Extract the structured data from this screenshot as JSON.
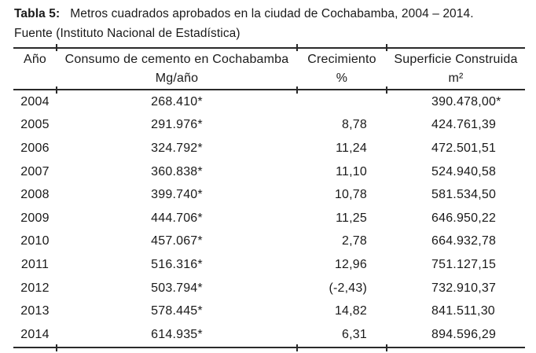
{
  "caption": {
    "label": "Tabla 5:",
    "text": "Metros cuadrados aprobados en la ciudad de Cochabamba, 2004 – 2014.",
    "source": "Fuente (Instituto Nacional de Estadística)"
  },
  "table": {
    "headers": [
      {
        "line1": "Año",
        "line2": ""
      },
      {
        "line1": "Consumo de cemento en Cochabamba",
        "line2": "Mg/año"
      },
      {
        "line1": "Crecimiento",
        "line2": "%"
      },
      {
        "line1": "Superficie Construida",
        "line2": "m²"
      }
    ],
    "rows": [
      [
        "2004",
        "268.410*",
        "",
        "390.478,00*"
      ],
      [
        "2005",
        "291.976*",
        "8,78",
        "424.761,39"
      ],
      [
        "2006",
        "324.792*",
        "11,24",
        "472.501,51"
      ],
      [
        "2007",
        "360.838*",
        "11,10",
        "524.940,58"
      ],
      [
        "2008",
        "399.740*",
        "10,78",
        "581.534,50"
      ],
      [
        "2009",
        "444.706*",
        "11,25",
        "646.950,22"
      ],
      [
        "2010",
        "457.067*",
        "2,78",
        "664.932,78"
      ],
      [
        "2011",
        "516.316*",
        "12,96",
        "751.127,15"
      ],
      [
        "2012",
        "503.794*",
        "(-2,43)",
        "732.910,37"
      ],
      [
        "2013",
        "578.445*",
        "14,82",
        "841.511,30"
      ],
      [
        "2014",
        "614.935*",
        "6,31",
        "894.596,29"
      ]
    ]
  },
  "colors": {
    "text": "#1a1a1a",
    "rule": "#2a2a2a",
    "background": "#ffffff"
  }
}
